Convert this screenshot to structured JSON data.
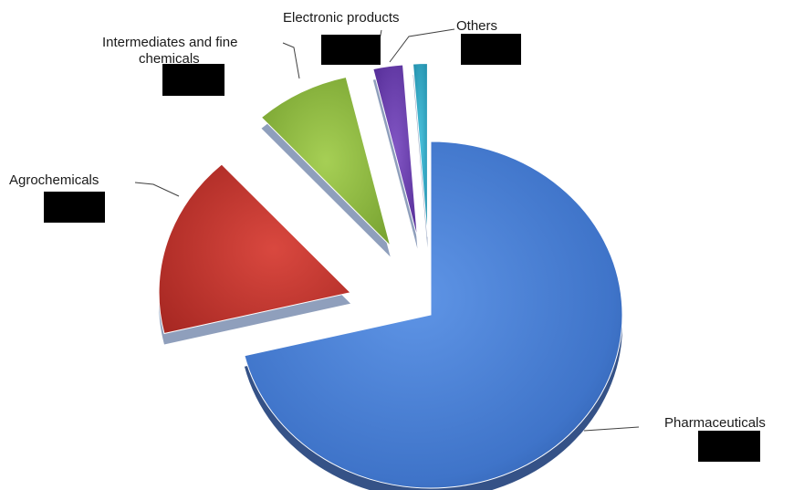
{
  "chart_data": {
    "type": "pie",
    "exploded": true,
    "three_d": true,
    "legend": "none",
    "slices": [
      {
        "label": "Pharmaceuticals",
        "value": 71,
        "color": "#4a7fd4",
        "label_lines": [
          "Pharmaceuticals"
        ]
      },
      {
        "label": "Agrochemicals",
        "value": 17,
        "color": "#c0352e",
        "label_lines": [
          "Agrochemicals"
        ]
      },
      {
        "label": "Intermediates and fine chemicals",
        "value": 8,
        "color": "#8dbb3c",
        "label_lines": [
          "Intermediates and fine",
          "chemicals"
        ]
      },
      {
        "label": "Electronic products",
        "value": 2.5,
        "color": "#6a3da8",
        "label_lines": [
          "Electronic products"
        ]
      },
      {
        "label": "Others",
        "value": 1.2,
        "color": "#2aa6c4",
        "label_lines": [
          "Others"
        ]
      }
    ],
    "data_labels": "redacted"
  }
}
